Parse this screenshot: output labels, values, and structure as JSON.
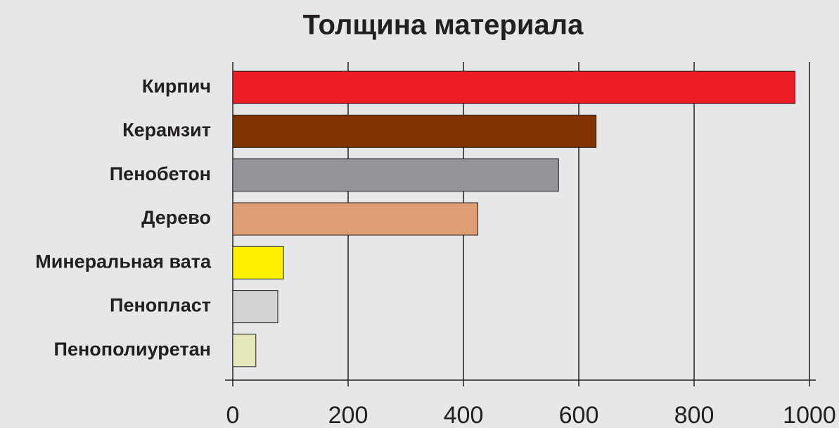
{
  "chart_data": {
    "type": "bar",
    "orientation": "horizontal",
    "title": "Толщина материала",
    "categories": [
      "Кирпич",
      "Керамзит",
      "Пенобетон",
      "Дерево",
      "Минеральная вата",
      "Пенопласт",
      "Пенополиуретан"
    ],
    "values": [
      975,
      630,
      565,
      425,
      88,
      78,
      40
    ],
    "colors": [
      "#ed1c24",
      "#7f3300",
      "#939598",
      "#dc9e72",
      "#fff200",
      "#d1d3d4",
      "#e6e8bc"
    ],
    "xlim": [
      0,
      1000
    ],
    "xticks": [
      0,
      200,
      400,
      600,
      800,
      1000
    ],
    "grid": true
  }
}
